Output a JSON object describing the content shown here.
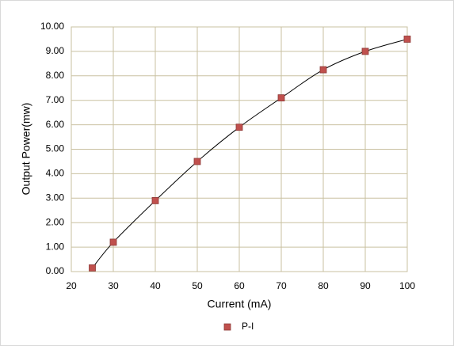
{
  "chart_data": {
    "type": "scatter",
    "x_label": "Current (mA)",
    "y_label": "Output Power(mw)",
    "series": [
      {
        "name": "P-I",
        "color": "#c0504d",
        "x": [
          25,
          30,
          40,
          50,
          60,
          70,
          80,
          90,
          100
        ],
        "values": [
          0.15,
          1.2,
          2.9,
          4.5,
          5.9,
          7.1,
          8.25,
          9.0,
          9.5
        ]
      }
    ],
    "smooth_line": true,
    "line_color": "#000000",
    "xlim": [
      20,
      100
    ],
    "xticks": [
      20,
      30,
      40,
      50,
      60,
      70,
      80,
      90,
      100
    ],
    "ylim": [
      0,
      10
    ],
    "yticks": [
      {
        "value": 0,
        "label": "0.00"
      },
      {
        "value": 1,
        "label": "1.00"
      },
      {
        "value": 2,
        "label": "2.00"
      },
      {
        "value": 3,
        "label": "3.00"
      },
      {
        "value": 4,
        "label": "4.00"
      },
      {
        "value": 5,
        "label": "5.00"
      },
      {
        "value": 6,
        "label": "6.00"
      },
      {
        "value": 7,
        "label": "7.00"
      },
      {
        "value": 8,
        "label": "8.00"
      },
      {
        "value": 9,
        "label": "9.00"
      },
      {
        "value": 10,
        "label": "10.00"
      }
    ],
    "grid": true,
    "legend": "bottom"
  }
}
